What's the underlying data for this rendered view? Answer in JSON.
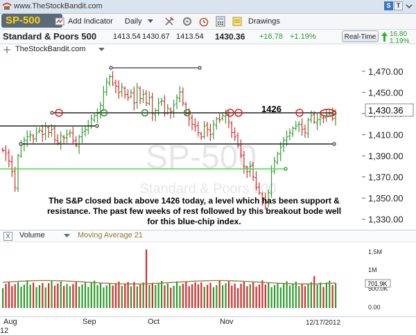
{
  "topbar": {
    "site_title": "www.TheStockBandit.com",
    "btn_s": "S",
    "btn_t": "T"
  },
  "toolbar": {
    "symbol": "SP-500",
    "add_indicator": "Add Indicator",
    "period": "Daily",
    "drawings": "Drawings"
  },
  "quote": {
    "name": "Standard & Poors 500",
    "open": "1413.54",
    "high": "1430.67",
    "low": "1413.54",
    "last": "1430.36",
    "change": "+16.78",
    "change_pct": "+1.19%",
    "realtime_label": "Real-Time",
    "rt_change": "16.80",
    "rt_pct": "1.19%"
  },
  "chart_legend": {
    "source": "TheStockBandit.com"
  },
  "watermark": {
    "symbol": "SP-500",
    "name": "Standard & Poors 500"
  },
  "annotation": {
    "level_label": "1426",
    "text": "The S&P closed back above 1426 today, a level which has been support & resistance. The past few weeks of rest followed by this breakout bode well for this blue-chip index."
  },
  "volume_panel": {
    "close_glyph": "X",
    "volume_label": "Volume",
    "ma_label": "Moving Average 21",
    "ticks": [
      "1.5M",
      "1M",
      "500.0K",
      "0.00"
    ],
    "current_value": "701.9K"
  },
  "xaxis": {
    "months": [
      "Aug",
      "Sep",
      "Oct",
      "Nov"
    ],
    "year_fragment": "12",
    "date": "12/17/2012"
  },
  "colors": {
    "up": "#2f9a2f",
    "down": "#d62a2a",
    "ma": "#8b7a2c",
    "green_line": "#44dd44"
  },
  "chart_data": {
    "type": "ohlc",
    "y_ticks": [
      "1,470.00",
      "1,450.00",
      "1,430.00",
      "1,410.00",
      "1,390.00",
      "1,370.00",
      "1,350.00",
      "1,330.00"
    ],
    "ylim": [
      1320,
      1485
    ],
    "last_price_label": "1,430.36",
    "close": [
      1395,
      1392,
      1385,
      1375,
      1360,
      1390,
      1400,
      1405,
      1408,
      1410,
      1406,
      1412,
      1414,
      1410,
      1418,
      1412,
      1415,
      1405,
      1402,
      1409,
      1407,
      1410,
      1412,
      1404,
      1400,
      1408,
      1412,
      1415,
      1418,
      1425,
      1428,
      1430,
      1438,
      1450,
      1460,
      1465,
      1458,
      1456,
      1450,
      1455,
      1448,
      1445,
      1450,
      1440,
      1455,
      1444,
      1448,
      1440,
      1445,
      1430,
      1433,
      1440,
      1442,
      1430,
      1435,
      1432,
      1438,
      1445,
      1450,
      1440,
      1430,
      1425,
      1420,
      1418,
      1412,
      1408,
      1418,
      1415,
      1410,
      1420,
      1425,
      1424,
      1428,
      1428,
      1422,
      1412,
      1408,
      1400,
      1390,
      1380,
      1375,
      1380,
      1370,
      1360,
      1355,
      1350,
      1345,
      1355,
      1375,
      1385,
      1392,
      1398,
      1405,
      1408,
      1412,
      1416,
      1418,
      1420,
      1415,
      1412,
      1424,
      1428,
      1422,
      1424,
      1427,
      1426,
      1429,
      1430,
      1425,
      1430
    ]
  }
}
